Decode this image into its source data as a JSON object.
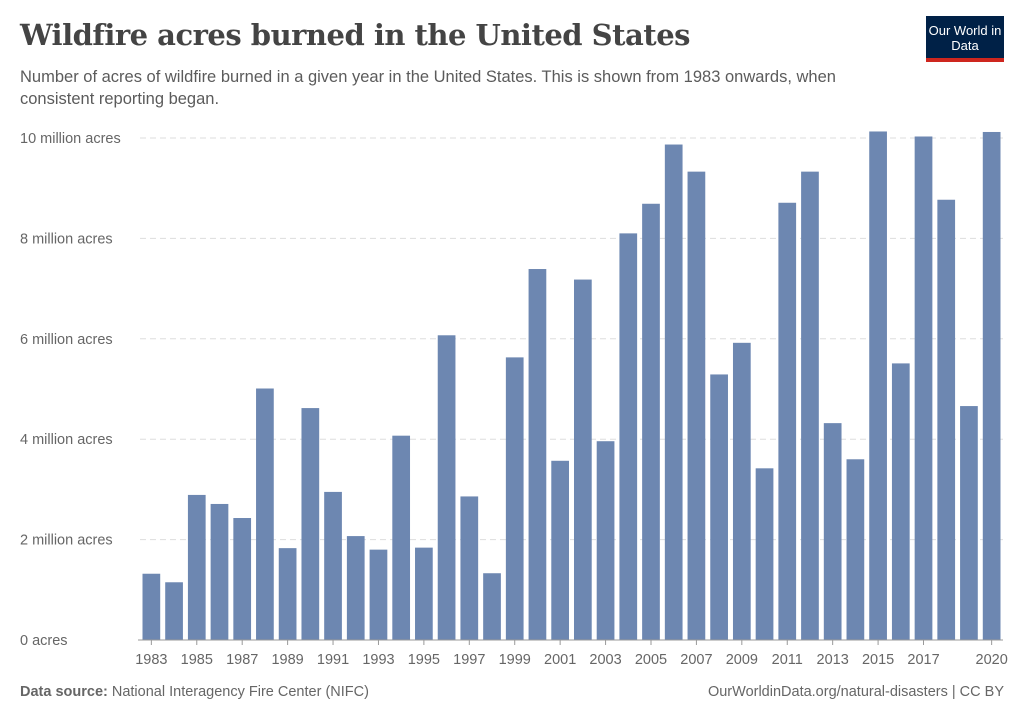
{
  "header": {
    "title": "Wildfire acres burned in the United States",
    "subtitle": "Number of acres of wildfire burned in a given year in the United States. This is shown from 1983 onwards, when consistent reporting began.",
    "logo": "Our World in Data"
  },
  "footer": {
    "source_label": "Data source:",
    "source": " National Interagency Fire Center (NIFC)",
    "link": "OurWorldinData.org/natural-disasters | CC BY"
  },
  "chart_data": {
    "type": "bar",
    "title": "Wildfire acres burned in the United States",
    "xlabel": "",
    "ylabel": "",
    "ylim": [
      0,
      10000000
    ],
    "grid": true,
    "color": "#6d87b1",
    "yticks": [
      {
        "v": 0,
        "label": "0 acres"
      },
      {
        "v": 2000000,
        "label": "2 million acres"
      },
      {
        "v": 4000000,
        "label": "4 million acres"
      },
      {
        "v": 6000000,
        "label": "6 million acres"
      },
      {
        "v": 8000000,
        "label": "8 million acres"
      },
      {
        "v": 10000000,
        "label": "10 million acres"
      }
    ],
    "xticks": [
      "1983",
      "1985",
      "1987",
      "1989",
      "1991",
      "1993",
      "1995",
      "1997",
      "1999",
      "2001",
      "2003",
      "2005",
      "2007",
      "2009",
      "2011",
      "2013",
      "2015",
      "2017",
      "2020"
    ],
    "categories": [
      1983,
      1984,
      1985,
      1986,
      1987,
      1988,
      1989,
      1990,
      1991,
      1992,
      1993,
      1994,
      1995,
      1996,
      1997,
      1998,
      1999,
      2000,
      2001,
      2002,
      2003,
      2004,
      2005,
      2006,
      2007,
      2008,
      2009,
      2010,
      2011,
      2012,
      2013,
      2014,
      2015,
      2016,
      2017,
      2018,
      2019,
      2020
    ],
    "values": [
      1320000,
      1150000,
      2890000,
      2710000,
      2430000,
      5010000,
      1830000,
      4620000,
      2950000,
      2070000,
      1800000,
      4070000,
      1840000,
      6070000,
      2860000,
      1330000,
      5630000,
      7390000,
      3570000,
      7180000,
      3960000,
      8100000,
      8690000,
      9870000,
      9330000,
      5290000,
      5920000,
      3420000,
      8710000,
      9330000,
      4320000,
      3600000,
      10130000,
      5510000,
      10030000,
      8770000,
      4660000,
      10120000
    ]
  }
}
